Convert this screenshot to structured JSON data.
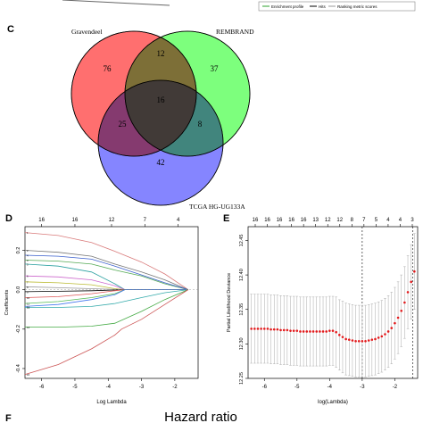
{
  "panel_b_legend": {
    "items": [
      "Enrichment profile",
      "Hits",
      "Ranking metric scores"
    ],
    "colors": [
      "#2ca02c",
      "#000000",
      "#999999"
    ]
  },
  "panel_c": {
    "letter": "C",
    "sets": [
      "Gravendeel",
      "REMBRAND",
      "TCGA HG-UG133A"
    ],
    "counts": {
      "only_gravendeel": "76",
      "only_rembrand": "37",
      "only_tcga": "42",
      "gravendeel_rembrand": "12",
      "gravendeel_tcga": "25",
      "rembrand_tcga": "8",
      "all_three": "16"
    },
    "colors": [
      "#ff6f6f",
      "#6fff6f",
      "#6f6fff"
    ]
  },
  "panel_d": {
    "letter": "D",
    "top_ticks": [
      "16",
      "16",
      "12",
      "7",
      "4"
    ],
    "x_ticks": [
      "-6",
      "-5",
      "-4",
      "-3",
      "-2"
    ],
    "y_ticks": [
      "-0.4",
      "-0.2",
      "0.0",
      "0.2"
    ],
    "xlabel": "Log Lambda",
    "ylabel": "Coefficients"
  },
  "panel_e": {
    "letter": "E",
    "top_ticks": [
      "16",
      "16",
      "16",
      "16",
      "16",
      "13",
      "12",
      "12",
      "8",
      "7",
      "5",
      "4",
      "4",
      "3"
    ],
    "x_ticks": [
      "-6",
      "-5",
      "-4",
      "-3",
      "-2"
    ],
    "y_ticks": [
      "12.25",
      "12.30",
      "12.35",
      "12.40",
      "12.45"
    ],
    "xlabel": "log(Lambda)",
    "ylabel": "Partial Likelihood Deviance"
  },
  "panel_f": {
    "letter": "F",
    "title": "Hazard ratio"
  },
  "chart_data": [
    {
      "type": "venn",
      "sets": [
        "Gravendeel",
        "REMBRAND",
        "TCGA HG-UG133A"
      ],
      "regions": [
        {
          "sets": [
            "Gravendeel"
          ],
          "value": 76
        },
        {
          "sets": [
            "REMBRAND"
          ],
          "value": 37
        },
        {
          "sets": [
            "TCGA HG-UG133A"
          ],
          "value": 42
        },
        {
          "sets": [
            "Gravendeel",
            "REMBRAND"
          ],
          "value": 12
        },
        {
          "sets": [
            "Gravendeel",
            "TCGA HG-UG133A"
          ],
          "value": 25
        },
        {
          "sets": [
            "REMBRAND",
            "TCGA HG-UG133A"
          ],
          "value": 8
        },
        {
          "sets": [
            "Gravendeel",
            "REMBRAND",
            "TCGA HG-UG133A"
          ],
          "value": 16
        }
      ]
    },
    {
      "type": "line",
      "xlabel": "Log Lambda",
      "ylabel": "Coefficients",
      "xlim": [
        -6.5,
        -1.3
      ],
      "ylim": [
        -0.45,
        0.32
      ],
      "converge_x": -1.6,
      "series": [
        {
          "values": [
            [
              -6.5,
              0.29
            ],
            [
              -5.5,
              0.275
            ],
            [
              -4.5,
              0.24
            ],
            [
              -3.8,
              0.195
            ],
            [
              -3,
              0.14
            ],
            [
              -2.3,
              0.08
            ],
            [
              -1.6,
              0
            ]
          ]
        },
        {
          "values": [
            [
              -6.5,
              0.2
            ],
            [
              -5.5,
              0.19
            ],
            [
              -4.5,
              0.17
            ],
            [
              -3.8,
              0.13
            ],
            [
              -3,
              0.09
            ],
            [
              -2.3,
              0.05
            ],
            [
              -1.6,
              0
            ]
          ]
        },
        {
          "values": [
            [
              -6.5,
              0.15
            ],
            [
              -5.5,
              0.145
            ],
            [
              -4.5,
              0.13
            ],
            [
              -3.8,
              0.1
            ],
            [
              -3,
              0.07
            ],
            [
              -2.3,
              0.03
            ],
            [
              -1.6,
              0
            ]
          ]
        },
        {
          "values": [
            [
              -6.5,
              0.175
            ],
            [
              -5.5,
              0.17
            ],
            [
              -4.5,
              0.155
            ],
            [
              -3.8,
              0.12
            ],
            [
              -3,
              0.075
            ],
            [
              -2.3,
              0.035
            ],
            [
              -1.6,
              0
            ]
          ]
        },
        {
          "values": [
            [
              -6.5,
              0.13
            ],
            [
              -5.5,
              0.12
            ],
            [
              -4.5,
              0.09
            ],
            [
              -3.8,
              0.03
            ],
            [
              -3.5,
              0
            ],
            [
              -1.6,
              0
            ]
          ]
        },
        {
          "values": [
            [
              -6.5,
              0.07
            ],
            [
              -5.5,
              0.065
            ],
            [
              -4.5,
              0.05
            ],
            [
              -3.8,
              0.02
            ],
            [
              -3.5,
              0
            ],
            [
              -1.6,
              0
            ]
          ]
        },
        {
          "values": [
            [
              -6.5,
              0.04
            ],
            [
              -5.5,
              0.035
            ],
            [
              -4.5,
              0.025
            ],
            [
              -3.8,
              0.005
            ],
            [
              -3.5,
              0
            ],
            [
              -1.6,
              0
            ]
          ]
        },
        {
          "values": [
            [
              -6.5,
              0.015
            ],
            [
              -5.5,
              0.01
            ],
            [
              -4.5,
              0.005
            ],
            [
              -3.5,
              0
            ],
            [
              -1.6,
              0
            ]
          ]
        },
        {
          "values": [
            [
              -6.5,
              -0.01
            ],
            [
              -5.5,
              -0.008
            ],
            [
              -4.5,
              -0.005
            ],
            [
              -3.5,
              0
            ],
            [
              -1.6,
              0
            ]
          ]
        },
        {
          "values": [
            [
              -6.5,
              -0.04
            ],
            [
              -5.5,
              -0.035
            ],
            [
              -4.5,
              -0.02
            ],
            [
              -3.8,
              -0.005
            ],
            [
              -3.5,
              0
            ],
            [
              -1.6,
              0
            ]
          ]
        },
        {
          "values": [
            [
              -6.5,
              -0.07
            ],
            [
              -5.5,
              -0.06
            ],
            [
              -4.5,
              -0.04
            ],
            [
              -3.8,
              -0.02
            ],
            [
              -3.5,
              0
            ],
            [
              -1.6,
              0
            ]
          ]
        },
        {
          "values": [
            [
              -6.5,
              -0.085
            ],
            [
              -5.5,
              -0.075
            ],
            [
              -4.5,
              -0.05
            ],
            [
              -3.8,
              -0.025
            ],
            [
              -3.5,
              0
            ],
            [
              -1.6,
              0
            ]
          ]
        },
        {
          "values": [
            [
              -6.5,
              -0.09
            ],
            [
              -5.5,
              -0.09
            ],
            [
              -4.5,
              -0.085
            ],
            [
              -3.8,
              -0.07
            ],
            [
              -3,
              -0.04
            ],
            [
              -2.3,
              -0.015
            ],
            [
              -1.6,
              0
            ]
          ]
        },
        {
          "values": [
            [
              -6.5,
              -0.19
            ],
            [
              -5.5,
              -0.19
            ],
            [
              -4.5,
              -0.185
            ],
            [
              -3.8,
              -0.17
            ],
            [
              -3,
              -0.11
            ],
            [
              -2.3,
              -0.05
            ],
            [
              -1.6,
              0
            ]
          ]
        },
        {
          "values": [
            [
              -6.5,
              -0.43
            ],
            [
              -5.5,
              -0.38
            ],
            [
              -4.5,
              -0.3
            ],
            [
              -3.8,
              -0.23
            ],
            [
              -3.6,
              -0.2
            ],
            [
              -3,
              -0.15
            ],
            [
              -2.3,
              -0.075
            ],
            [
              -1.6,
              0
            ]
          ]
        }
      ]
    },
    {
      "type": "scatter",
      "xlabel": "log(Lambda)",
      "ylabel": "Partial Likelihood Deviance",
      "xlim": [
        -6.5,
        -1.3
      ],
      "ylim": [
        12.25,
        12.47
      ],
      "vlines": [
        -3.0,
        -1.45
      ],
      "x": [
        -6.4,
        -6.3,
        -6.2,
        -6.1,
        -6.0,
        -5.9,
        -5.8,
        -5.7,
        -5.6,
        -5.5,
        -5.4,
        -5.3,
        -5.2,
        -5.1,
        -5.0,
        -4.9,
        -4.8,
        -4.7,
        -4.6,
        -4.5,
        -4.4,
        -4.3,
        -4.2,
        -4.1,
        -4.0,
        -3.9,
        -3.8,
        -3.7,
        -3.6,
        -3.5,
        -3.4,
        -3.3,
        -3.2,
        -3.1,
        -3.0,
        -2.9,
        -2.8,
        -2.7,
        -2.6,
        -2.5,
        -2.4,
        -2.3,
        -2.2,
        -2.1,
        -2.0,
        -1.9,
        -1.8,
        -1.7,
        -1.6,
        -1.5,
        -1.4
      ],
      "y": [
        12.322,
        12.322,
        12.322,
        12.322,
        12.322,
        12.322,
        12.321,
        12.321,
        12.321,
        12.32,
        12.32,
        12.32,
        12.319,
        12.319,
        12.319,
        12.318,
        12.318,
        12.318,
        12.318,
        12.318,
        12.318,
        12.318,
        12.318,
        12.318,
        12.319,
        12.319,
        12.317,
        12.313,
        12.31,
        12.307,
        12.306,
        12.305,
        12.304,
        12.304,
        12.304,
        12.304,
        12.305,
        12.306,
        12.307,
        12.309,
        12.311,
        12.314,
        12.318,
        12.323,
        12.33,
        12.338,
        12.348,
        12.36,
        12.375,
        12.39,
        12.405
      ],
      "err_lo": [
        12.272,
        12.272,
        12.272,
        12.272,
        12.272,
        12.272,
        12.271,
        12.271,
        12.271,
        12.27,
        12.27,
        12.27,
        12.269,
        12.269,
        12.269,
        12.268,
        12.268,
        12.268,
        12.268,
        12.268,
        12.268,
        12.268,
        12.268,
        12.268,
        12.269,
        12.269,
        12.266,
        12.262,
        12.258,
        12.255,
        12.254,
        12.253,
        12.252,
        12.252,
        12.252,
        12.252,
        12.253,
        12.254,
        12.255,
        12.257,
        12.259,
        12.262,
        12.266,
        12.271,
        12.278,
        12.286,
        12.296,
        12.308,
        12.322,
        12.336,
        12.35
      ],
      "err_hi": [
        12.372,
        12.372,
        12.372,
        12.372,
        12.372,
        12.372,
        12.371,
        12.371,
        12.371,
        12.37,
        12.37,
        12.37,
        12.369,
        12.369,
        12.369,
        12.368,
        12.368,
        12.368,
        12.368,
        12.368,
        12.368,
        12.368,
        12.368,
        12.368,
        12.369,
        12.369,
        12.368,
        12.364,
        12.362,
        12.359,
        12.358,
        12.357,
        12.356,
        12.356,
        12.356,
        12.356,
        12.357,
        12.358,
        12.359,
        12.361,
        12.363,
        12.366,
        12.37,
        12.375,
        12.382,
        12.39,
        12.4,
        12.412,
        12.428,
        12.444,
        12.46
      ]
    }
  ]
}
